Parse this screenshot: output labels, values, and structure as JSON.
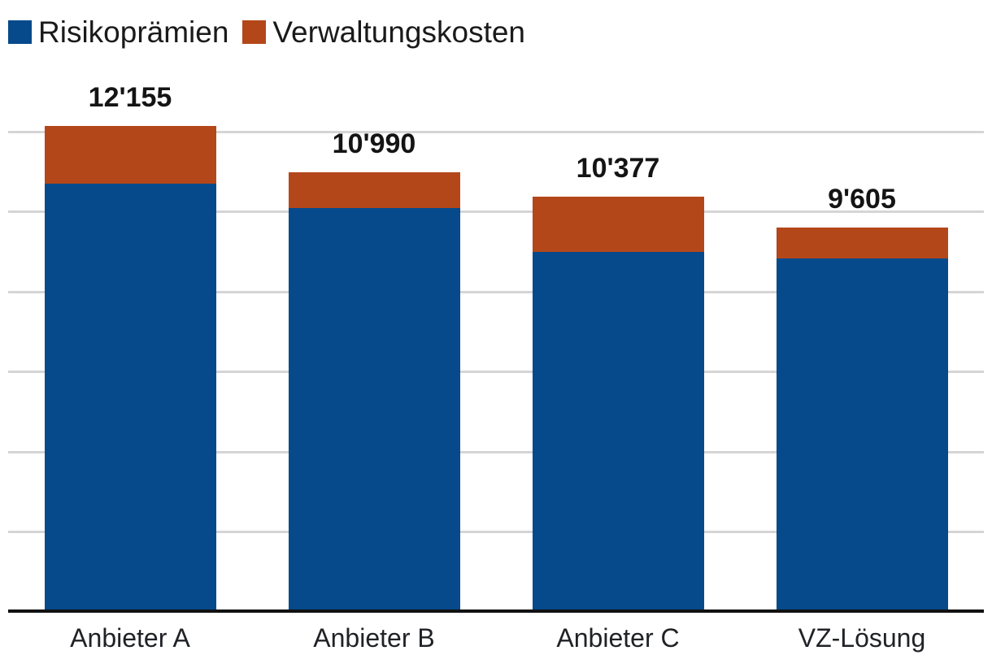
{
  "legend": {
    "items": [
      {
        "label": "Risikoprämien",
        "color": "#064a8b"
      },
      {
        "label": "Verwaltungskosten",
        "color": "#b4471a"
      }
    ]
  },
  "chart_data": {
    "type": "bar",
    "stacked": true,
    "title": "",
    "xlabel": "",
    "ylabel": "",
    "categories": [
      "Anbieter A",
      "Anbieter B",
      "Anbieter C",
      "VZ-Lösung"
    ],
    "series": [
      {
        "name": "Risikoprämien",
        "color": "#064a8b",
        "values": [
          10700,
          10090,
          9010,
          8840
        ]
      },
      {
        "name": "Verwaltungskosten",
        "color": "#b4471a",
        "values": [
          1455,
          900,
          1367,
          765
        ]
      }
    ],
    "totals": [
      12155,
      10990,
      10377,
      9605
    ],
    "total_labels": [
      "12'155",
      "10'990",
      "10'377",
      "9'605"
    ],
    "ylim": [
      0,
      12200
    ],
    "gridlines": [
      2000,
      4000,
      6000,
      8000,
      10000,
      12000
    ],
    "grid": true,
    "y_axis_tick_labels_visible": false,
    "legend_position": "top-left",
    "colors": {
      "gridline": "#d5d5d5",
      "axis": "#111111",
      "background": "#ffffff",
      "label_text": "#141414"
    }
  }
}
